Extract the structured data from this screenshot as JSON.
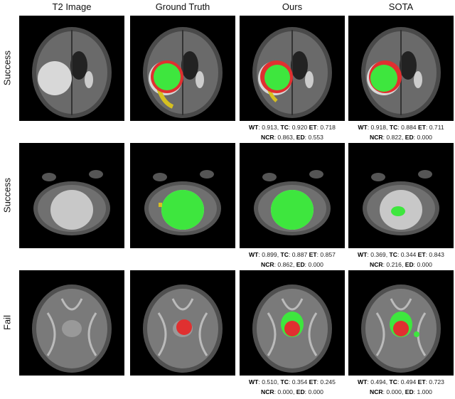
{
  "columns": [
    "T2 Image",
    "Ground Truth",
    "Ours",
    "SOTA"
  ],
  "rows": [
    {
      "label": "Success",
      "metrics": {
        "ours": [
          [
            "WT",
            "0.913"
          ],
          [
            "TC",
            "0.920"
          ],
          [
            "ET",
            "0.718"
          ],
          [
            "NCR",
            "0.863"
          ],
          [
            "ED",
            "0.553"
          ]
        ],
        "sota": [
          [
            "WT",
            "0.918"
          ],
          [
            "TC",
            "0.884"
          ],
          [
            "ET",
            "0.711"
          ],
          [
            "NCR",
            "0.822"
          ],
          [
            "ED",
            "0.000"
          ]
        ]
      }
    },
    {
      "label": "Success",
      "metrics": {
        "ours": [
          [
            "WT",
            "0.899"
          ],
          [
            "TC",
            "0.887"
          ],
          [
            "ET",
            "0.857"
          ],
          [
            "NCR",
            "0.862"
          ],
          [
            "ED",
            "0.000"
          ]
        ],
        "sota": [
          [
            "WT",
            "0.369"
          ],
          [
            "TC",
            "0.344"
          ],
          [
            "ET",
            "0.843"
          ],
          [
            "NCR",
            "0.216"
          ],
          [
            "ED",
            "0.000"
          ]
        ]
      }
    },
    {
      "label": "Fail",
      "metrics": {
        "ours": [
          [
            "WT",
            "0.510"
          ],
          [
            "TC",
            "0.354"
          ],
          [
            "ET",
            "0.245"
          ],
          [
            "NCR",
            "0.000"
          ],
          [
            "ED",
            "0.000"
          ]
        ],
        "sota": [
          [
            "WT",
            "0.494"
          ],
          [
            "TC",
            "0.494"
          ],
          [
            "ET",
            "0.723"
          ],
          [
            "NCR",
            "0.000"
          ],
          [
            "ED",
            "1.000"
          ]
        ]
      }
    }
  ],
  "colors": {
    "enhancing": "#3ee63e",
    "necrotic": "#e03030",
    "edema": "#d6c020"
  }
}
